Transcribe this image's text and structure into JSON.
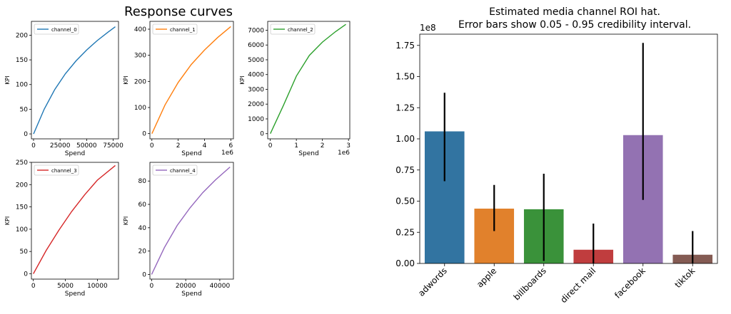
{
  "chart_data": [
    {
      "type": "line",
      "group_title": "Response curves",
      "title": "",
      "xlabel": "Spend",
      "ylabel": "KPI",
      "legend": "top-left",
      "grid": false,
      "xlim": [
        -2000,
        80000
      ],
      "ylim": [
        -10,
        228
      ],
      "xticks": [
        0,
        25000,
        50000,
        75000
      ],
      "yticks": [
        0,
        50,
        100,
        150,
        200
      ],
      "series": [
        {
          "name": "channel_0",
          "color": "#1f77b4",
          "x": [
            0,
            10000,
            20000,
            30000,
            40000,
            50000,
            60000,
            70000,
            77000
          ],
          "y": [
            0,
            50,
            90,
            122,
            148,
            170,
            189,
            206,
            217
          ]
        }
      ]
    },
    {
      "type": "line",
      "title": "",
      "xlabel": "Spend",
      "ylabel": "KPI",
      "x_offset_text": "1e6",
      "legend": "top-left",
      "grid": false,
      "xlim": [
        -0.15,
        6.2
      ],
      "ylim": [
        -20,
        430
      ],
      "xticks": [
        0,
        2,
        4,
        6
      ],
      "yticks": [
        0,
        100,
        200,
        300,
        400
      ],
      "series": [
        {
          "name": "channel_1",
          "color": "#ff7f0e",
          "x": [
            0,
            1,
            2,
            3,
            4,
            5,
            6
          ],
          "y": [
            0,
            110,
            196,
            265,
            320,
            368,
            410
          ]
        }
      ]
    },
    {
      "type": "line",
      "title": "",
      "xlabel": "Spend",
      "ylabel": "KPI",
      "x_offset_text": "1e6",
      "legend": "top-left",
      "grid": false,
      "xlim": [
        -0.1,
        3.05
      ],
      "ylim": [
        -350,
        7600
      ],
      "xticks": [
        0,
        1,
        2,
        3
      ],
      "yticks": [
        0,
        1000,
        2000,
        3000,
        4000,
        5000,
        6000,
        7000
      ],
      "series": [
        {
          "name": "channel_2",
          "color": "#2ca02c",
          "x": [
            0,
            0.5,
            1,
            1.5,
            2,
            2.5,
            2.9
          ],
          "y": [
            0,
            1900,
            3900,
            5300,
            6200,
            6900,
            7400
          ]
        }
      ]
    },
    {
      "type": "line",
      "title": "",
      "xlabel": "Spend",
      "ylabel": "KPI",
      "legend": "top-left",
      "grid": false,
      "xlim": [
        -300,
        13300
      ],
      "ylim": [
        -12,
        250
      ],
      "xticks": [
        0,
        5000,
        10000
      ],
      "yticks": [
        0,
        50,
        100,
        150,
        200,
        250
      ],
      "series": [
        {
          "name": "channel_3",
          "color": "#d62728",
          "x": [
            0,
            2000,
            4000,
            6000,
            8000,
            10000,
            12800
          ],
          "y": [
            0,
            52,
            98,
            140,
            177,
            210,
            243
          ]
        }
      ]
    },
    {
      "type": "line",
      "title": "",
      "xlabel": "Spend",
      "ylabel": "KPI",
      "legend": "top-left",
      "grid": false,
      "xlim": [
        -1000,
        48000
      ],
      "ylim": [
        -4,
        96
      ],
      "xticks": [
        0,
        20000,
        40000
      ],
      "yticks": [
        0,
        20,
        40,
        60,
        80
      ],
      "series": [
        {
          "name": "channel_4",
          "color": "#9467bd",
          "x": [
            0,
            7500,
            15000,
            22500,
            30000,
            37500,
            46000
          ],
          "y": [
            0,
            23,
            42,
            57,
            70,
            81,
            92
          ]
        }
      ]
    },
    {
      "type": "bar",
      "title": "Estimated media channel ROI hat.",
      "subtitle": "Error bars show 0.05 - 0.95 credibility interval.",
      "xlabel": "",
      "ylabel": "",
      "y_offset_text": "1e8",
      "grid": false,
      "ylim": [
        0,
        1.84
      ],
      "yticks": [
        0.0,
        0.25,
        0.5,
        0.75,
        1.0,
        1.25,
        1.5,
        1.75
      ],
      "ytick_labels": [
        "0.00",
        "0.25",
        "0.50",
        "0.75",
        "1.00",
        "1.25",
        "1.50",
        "1.75"
      ],
      "categories": [
        "adwords",
        "apple",
        "billboards",
        "direct mail",
        "facebook",
        "tiktok"
      ],
      "values": [
        1.06,
        0.44,
        0.435,
        0.11,
        1.03,
        0.07
      ],
      "error_low": [
        0.66,
        0.26,
        0.02,
        0.0,
        0.51,
        0.0
      ],
      "error_high": [
        1.37,
        0.63,
        0.72,
        0.32,
        1.77,
        0.26
      ],
      "colors": [
        "#3274a1",
        "#e1812c",
        "#3a923a",
        "#c03d3e",
        "#9372b2",
        "#845b53"
      ]
    }
  ]
}
